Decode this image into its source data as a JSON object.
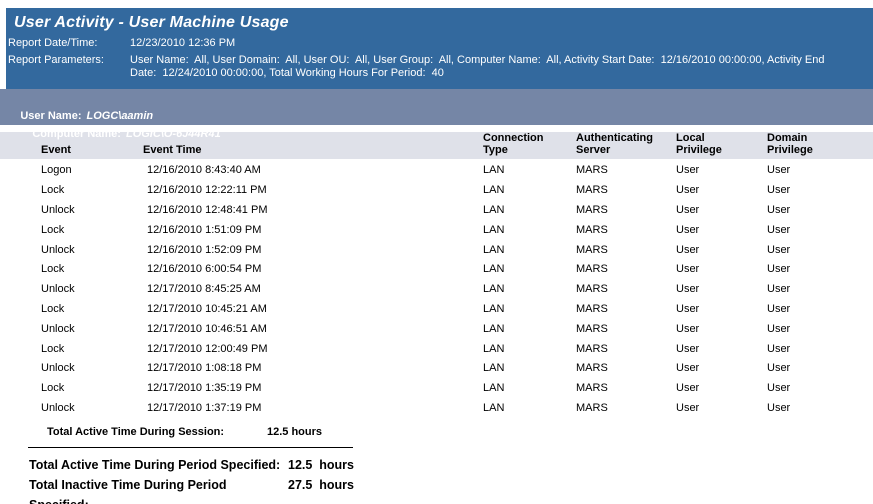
{
  "title": "User Activity - User Machine Usage",
  "report_info": {
    "date_label": "Report Date/Time:",
    "date_value": "12/23/2010 12:36 PM",
    "params_label": "Report Parameters:",
    "params_value": "User Name:  All, User Domain:  All, User OU:  All, User Group:  All, Computer Name:  All, Activity Start Date:  12/16/2010 00:00:00, Activity End Date:  12/24/2010 00:00:00, Total Working Hours For Period:  40"
  },
  "user_section": {
    "user_label": "User Name:",
    "user_value": "LOGC\\aamin",
    "computer_label": "Computer Name:",
    "computer_value": "LOGIC\\O-6J44R41"
  },
  "table": {
    "headers": [
      "Event",
      "Event Time",
      "Connection\nType",
      "Authenticating\nServer",
      "Local\nPrivilege",
      "Domain\nPrivilege"
    ],
    "rows": [
      {
        "event": "Logon",
        "time": "12/16/2010 8:43:40 AM",
        "connection": "LAN",
        "server": "MARS",
        "local": "User",
        "domain": "User"
      },
      {
        "event": "Lock",
        "time": "12/16/2010 12:22:11 PM",
        "connection": "LAN",
        "server": "MARS",
        "local": "User",
        "domain": "User"
      },
      {
        "event": "Unlock",
        "time": "12/16/2010 12:48:41 PM",
        "connection": "LAN",
        "server": "MARS",
        "local": "User",
        "domain": "User"
      },
      {
        "event": "Lock",
        "time": "12/16/2010 1:51:09 PM",
        "connection": "LAN",
        "server": "MARS",
        "local": "User",
        "domain": "User"
      },
      {
        "event": "Unlock",
        "time": "12/16/2010 1:52:09 PM",
        "connection": "LAN",
        "server": "MARS",
        "local": "User",
        "domain": "User"
      },
      {
        "event": "Lock",
        "time": "12/16/2010 6:00:54 PM",
        "connection": "LAN",
        "server": "MARS",
        "local": "User",
        "domain": "User"
      },
      {
        "event": "Unlock",
        "time": "12/17/2010 8:45:25 AM",
        "connection": "LAN",
        "server": "MARS",
        "local": "User",
        "domain": "User"
      },
      {
        "event": "Lock",
        "time": "12/17/2010 10:45:21 AM",
        "connection": "LAN",
        "server": "MARS",
        "local": "User",
        "domain": "User"
      },
      {
        "event": "Unlock",
        "time": "12/17/2010 10:46:51 AM",
        "connection": "LAN",
        "server": "MARS",
        "local": "User",
        "domain": "User"
      },
      {
        "event": "Lock",
        "time": "12/17/2010 12:00:49 PM",
        "connection": "LAN",
        "server": "MARS",
        "local": "User",
        "domain": "User"
      },
      {
        "event": "Unlock",
        "time": "12/17/2010 1:08:18 PM",
        "connection": "LAN",
        "server": "MARS",
        "local": "User",
        "domain": "User"
      },
      {
        "event": "Lock",
        "time": "12/17/2010 1:35:19 PM",
        "connection": "LAN",
        "server": "MARS",
        "local": "User",
        "domain": "User"
      },
      {
        "event": "Unlock",
        "time": "12/17/2010 1:37:19 PM",
        "connection": "LAN",
        "server": "MARS",
        "local": "User",
        "domain": "User"
      }
    ]
  },
  "totals": {
    "session_label": "Total Active Time During Session:",
    "session_value": "12.5 hours",
    "active_period_label": "Total Active Time During Period Specified:",
    "active_period_value": "12.5  hours",
    "inactive_period_label": "Total Inactive Time During Period Specified:",
    "inactive_period_value": "27.5  hours"
  },
  "colors": {
    "header_blue": "#33699E",
    "bar_slate": "#7586A6",
    "column_band_gray": "#DFE1E9",
    "text_on_blue": "#FFFFFF",
    "body_text": "#000000"
  }
}
